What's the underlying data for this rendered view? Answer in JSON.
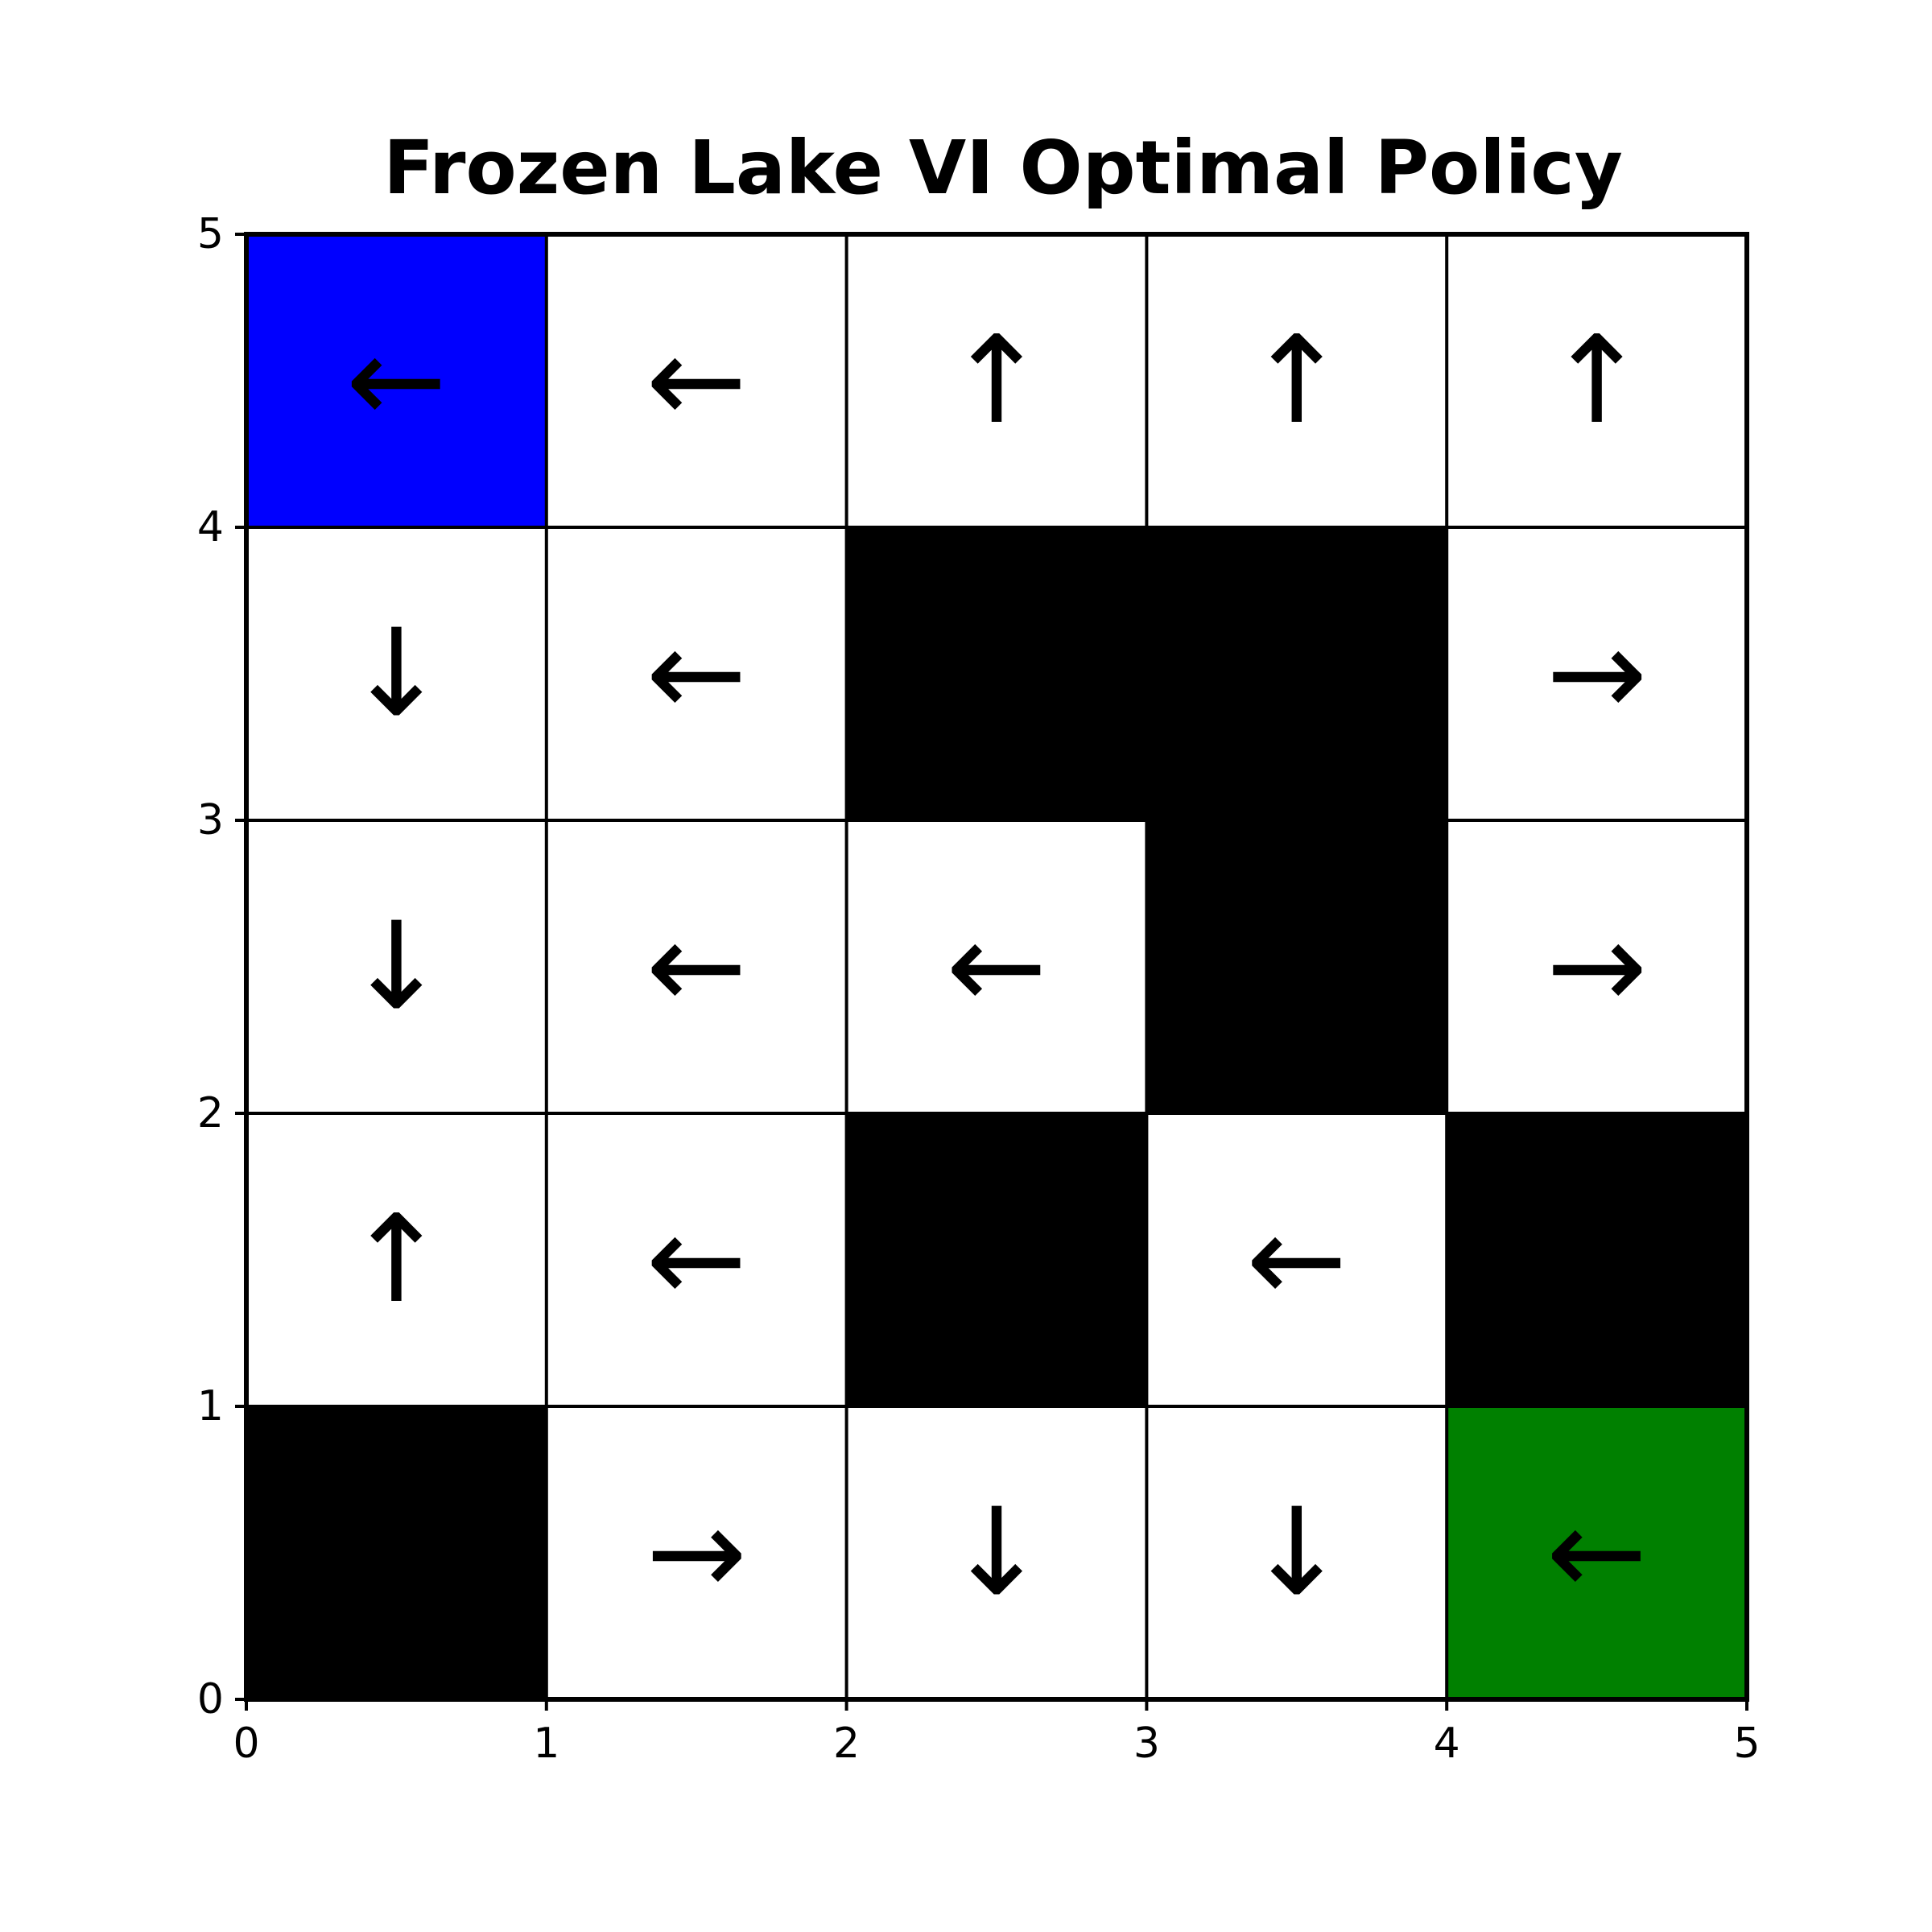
{
  "chart_data": {
    "type": "heatmap",
    "title": "Frozen Lake VI Optimal Policy",
    "xlabel": "",
    "ylabel": "",
    "xlim": [
      0,
      5
    ],
    "ylim": [
      0,
      5
    ],
    "x_ticks": [
      "0",
      "1",
      "2",
      "3",
      "4",
      "5"
    ],
    "y_ticks": [
      "0",
      "1",
      "2",
      "3",
      "4",
      "5"
    ],
    "grid": true,
    "legend": "none",
    "colors": {
      "start": "#0000ff",
      "goal": "#008000",
      "hole": "#000000",
      "frozen": "#ffffff",
      "grid_line": "#000000"
    },
    "cells": [
      {
        "row": 0,
        "col": 0,
        "type": "start",
        "action": "←"
      },
      {
        "row": 0,
        "col": 1,
        "type": "frozen",
        "action": "←"
      },
      {
        "row": 0,
        "col": 2,
        "type": "frozen",
        "action": "↑"
      },
      {
        "row": 0,
        "col": 3,
        "type": "frozen",
        "action": "↑"
      },
      {
        "row": 0,
        "col": 4,
        "type": "frozen",
        "action": "↑"
      },
      {
        "row": 1,
        "col": 0,
        "type": "frozen",
        "action": "↓"
      },
      {
        "row": 1,
        "col": 1,
        "type": "frozen",
        "action": "←"
      },
      {
        "row": 1,
        "col": 2,
        "type": "hole",
        "action": ""
      },
      {
        "row": 1,
        "col": 3,
        "type": "hole",
        "action": ""
      },
      {
        "row": 1,
        "col": 4,
        "type": "frozen",
        "action": "→"
      },
      {
        "row": 2,
        "col": 0,
        "type": "frozen",
        "action": "↓"
      },
      {
        "row": 2,
        "col": 1,
        "type": "frozen",
        "action": "←"
      },
      {
        "row": 2,
        "col": 2,
        "type": "frozen",
        "action": "←"
      },
      {
        "row": 2,
        "col": 3,
        "type": "hole",
        "action": ""
      },
      {
        "row": 2,
        "col": 4,
        "type": "frozen",
        "action": "→"
      },
      {
        "row": 3,
        "col": 0,
        "type": "frozen",
        "action": "↑"
      },
      {
        "row": 3,
        "col": 1,
        "type": "frozen",
        "action": "←"
      },
      {
        "row": 3,
        "col": 2,
        "type": "hole",
        "action": ""
      },
      {
        "row": 3,
        "col": 3,
        "type": "frozen",
        "action": "←"
      },
      {
        "row": 3,
        "col": 4,
        "type": "hole",
        "action": ""
      },
      {
        "row": 4,
        "col": 0,
        "type": "hole",
        "action": ""
      },
      {
        "row": 4,
        "col": 1,
        "type": "frozen",
        "action": "→"
      },
      {
        "row": 4,
        "col": 2,
        "type": "frozen",
        "action": "↓"
      },
      {
        "row": 4,
        "col": 3,
        "type": "frozen",
        "action": "↓"
      },
      {
        "row": 4,
        "col": 4,
        "type": "goal",
        "action": "←"
      }
    ]
  }
}
